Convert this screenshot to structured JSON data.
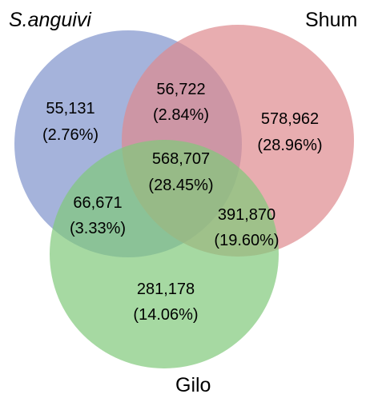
{
  "sets": [
    {
      "id": "a",
      "name": "S.anguivi",
      "color": "#7f93cc",
      "italic": true
    },
    {
      "id": "b",
      "name": "Shum",
      "color": "#de8a8e",
      "italic": false
    },
    {
      "id": "c",
      "name": "Gilo",
      "color": "#80c97b",
      "italic": false
    }
  ],
  "regions": [
    {
      "sets": [
        "a"
      ],
      "count": "55,131",
      "percent": "(2.76%)"
    },
    {
      "sets": [
        "a",
        "b"
      ],
      "count": "56,722",
      "percent": "(2.84%)"
    },
    {
      "sets": [
        "b"
      ],
      "count": "578,962",
      "percent": "(28.96%)"
    },
    {
      "sets": [
        "a",
        "b",
        "c"
      ],
      "count": "568,707",
      "percent": "(28.45%)"
    },
    {
      "sets": [
        "a",
        "c"
      ],
      "count": "66,671",
      "percent": "(3.33%)"
    },
    {
      "sets": [
        "b",
        "c"
      ],
      "count": "391,870",
      "percent": "(19.60%)"
    },
    {
      "sets": [
        "c"
      ],
      "count": "281,178",
      "percent": "(14.06%)"
    }
  ]
}
